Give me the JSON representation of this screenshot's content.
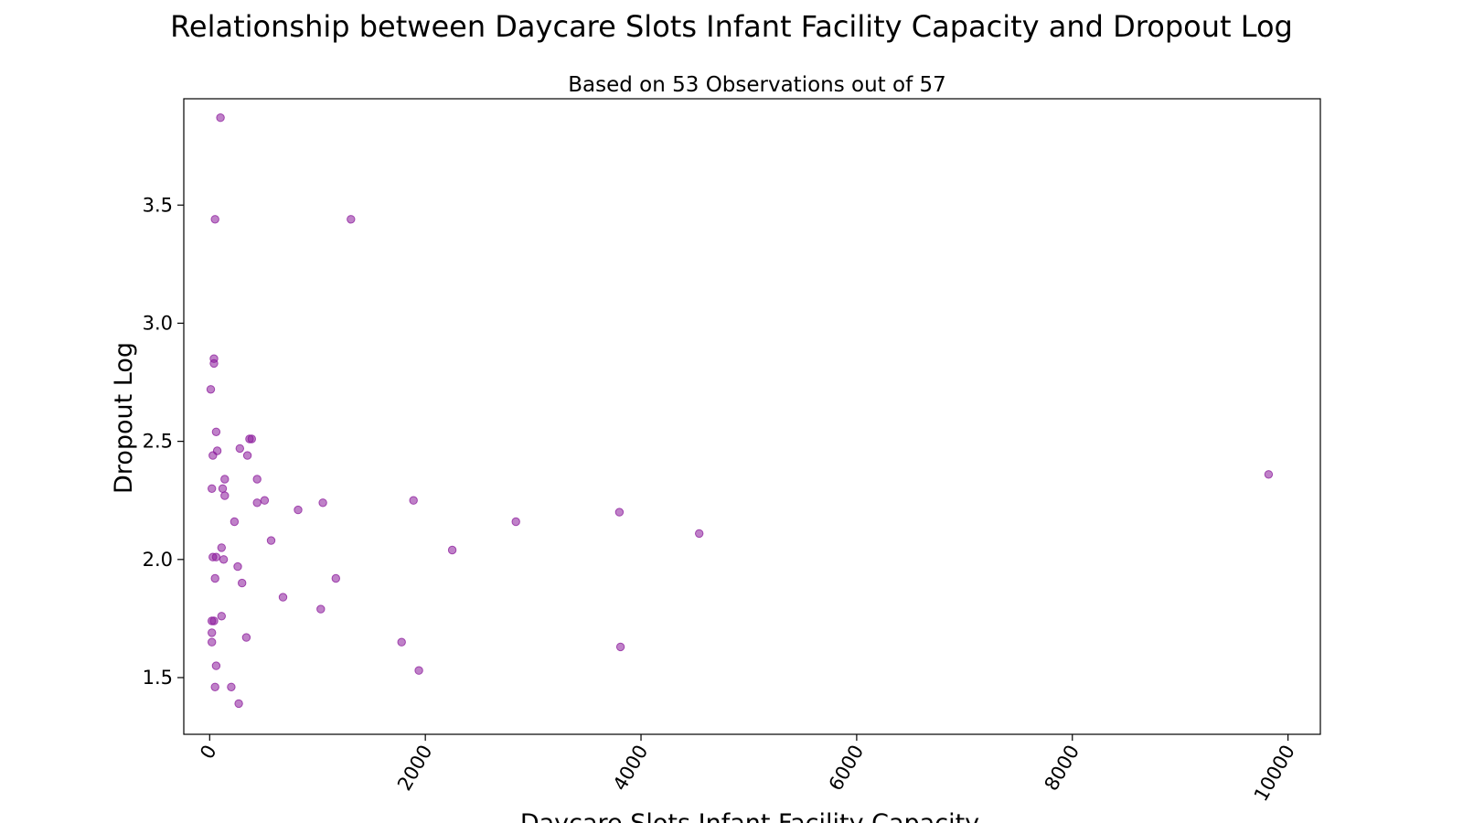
{
  "chart_data": {
    "type": "scatter",
    "title": "Relationship between Daycare Slots Infant Facility Capacity and Dropout Log",
    "subtitle": "Based on 53 Observations out of 57",
    "xlabel": "Daycare Slots Infant Facility Capacity",
    "ylabel": "Dropout Log",
    "xlim": [
      -240,
      10300
    ],
    "ylim": [
      1.26,
      3.95
    ],
    "xticks": [
      0,
      2000,
      4000,
      6000,
      8000,
      10000
    ],
    "xtick_labels": [
      "0",
      "2000",
      "4000",
      "6000",
      "8000",
      "10000"
    ],
    "yticks": [
      1.5,
      2.0,
      2.5,
      3.0,
      3.5
    ],
    "ytick_labels": [
      "1.5",
      "2.0",
      "2.5",
      "3.0",
      "3.5"
    ],
    "grid": false,
    "marker_color": "#8b1a9b",
    "points": [
      {
        "x": 100,
        "y": 3.87
      },
      {
        "x": 50,
        "y": 3.44
      },
      {
        "x": 1310,
        "y": 3.44
      },
      {
        "x": 40,
        "y": 2.85
      },
      {
        "x": 40,
        "y": 2.83
      },
      {
        "x": 10,
        "y": 2.72
      },
      {
        "x": 60,
        "y": 2.54
      },
      {
        "x": 370,
        "y": 2.51
      },
      {
        "x": 390,
        "y": 2.51
      },
      {
        "x": 280,
        "y": 2.47
      },
      {
        "x": 70,
        "y": 2.46
      },
      {
        "x": 30,
        "y": 2.44
      },
      {
        "x": 350,
        "y": 2.44
      },
      {
        "x": 140,
        "y": 2.34
      },
      {
        "x": 440,
        "y": 2.34
      },
      {
        "x": 9820,
        "y": 2.36
      },
      {
        "x": 20,
        "y": 2.3
      },
      {
        "x": 120,
        "y": 2.3
      },
      {
        "x": 140,
        "y": 2.27
      },
      {
        "x": 510,
        "y": 2.25
      },
      {
        "x": 1890,
        "y": 2.25
      },
      {
        "x": 440,
        "y": 2.24
      },
      {
        "x": 1050,
        "y": 2.24
      },
      {
        "x": 820,
        "y": 2.21
      },
      {
        "x": 3800,
        "y": 2.2
      },
      {
        "x": 230,
        "y": 2.16
      },
      {
        "x": 2840,
        "y": 2.16
      },
      {
        "x": 4540,
        "y": 2.11
      },
      {
        "x": 570,
        "y": 2.08
      },
      {
        "x": 110,
        "y": 2.05
      },
      {
        "x": 2250,
        "y": 2.04
      },
      {
        "x": 30,
        "y": 2.01
      },
      {
        "x": 60,
        "y": 2.01
      },
      {
        "x": 130,
        "y": 2.0
      },
      {
        "x": 260,
        "y": 1.97
      },
      {
        "x": 50,
        "y": 1.92
      },
      {
        "x": 1170,
        "y": 1.92
      },
      {
        "x": 300,
        "y": 1.9
      },
      {
        "x": 680,
        "y": 1.84
      },
      {
        "x": 1030,
        "y": 1.79
      },
      {
        "x": 110,
        "y": 1.76
      },
      {
        "x": 20,
        "y": 1.74
      },
      {
        "x": 40,
        "y": 1.74
      },
      {
        "x": 20,
        "y": 1.69
      },
      {
        "x": 340,
        "y": 1.67
      },
      {
        "x": 20,
        "y": 1.65
      },
      {
        "x": 1780,
        "y": 1.65
      },
      {
        "x": 3810,
        "y": 1.63
      },
      {
        "x": 60,
        "y": 1.55
      },
      {
        "x": 1940,
        "y": 1.53
      },
      {
        "x": 50,
        "y": 1.46
      },
      {
        "x": 200,
        "y": 1.46
      },
      {
        "x": 270,
        "y": 1.39
      }
    ]
  }
}
